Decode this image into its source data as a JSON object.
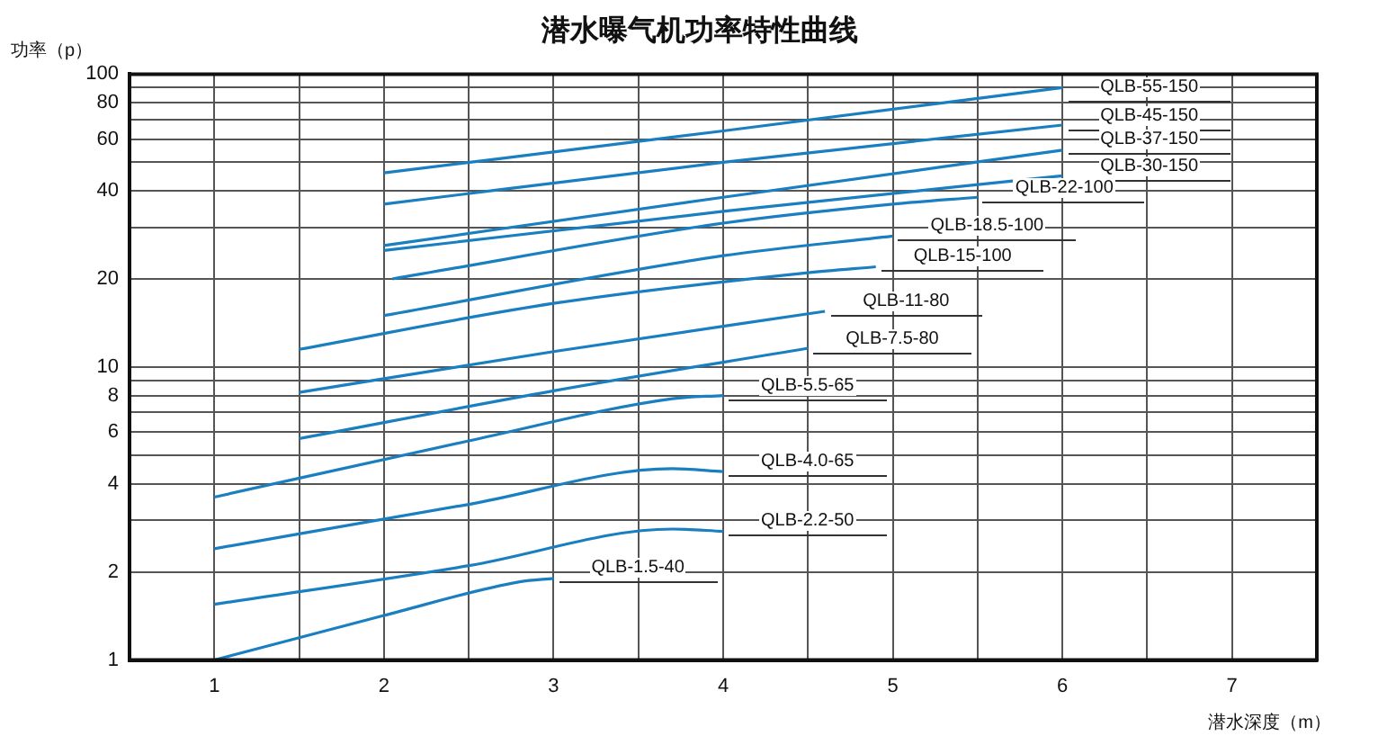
{
  "chart_data": {
    "type": "line",
    "title": "潜水曝气机功率特性曲线",
    "xlabel": "潜水深度（m）",
    "ylabel": "功率（p）",
    "log": "y",
    "grid": true,
    "marker": "none",
    "line_style": "solid",
    "legend": false,
    "xlim": [
      0.5,
      7.5
    ],
    "xticks": [
      {
        "value": 0.5,
        "label": null
      },
      1,
      {
        "value": 1.5,
        "label": null
      },
      2,
      {
        "value": 2.5,
        "label": null
      },
      3,
      {
        "value": 3.5,
        "label": null
      },
      4,
      {
        "value": 4.5,
        "label": null
      },
      5,
      {
        "value": 5.5,
        "label": null
      },
      6,
      {
        "value": 6.5,
        "label": null
      },
      7,
      {
        "value": 7.5,
        "label": null
      }
    ],
    "ylim": [
      1,
      100
    ],
    "yticks": [
      1,
      2,
      {
        "value": 3,
        "label": null
      },
      4,
      {
        "value": 5,
        "label": null
      },
      6,
      {
        "value": 7,
        "label": null
      },
      8,
      {
        "value": 9,
        "label": null
      },
      10,
      20,
      {
        "value": 30,
        "label": null
      },
      40,
      {
        "value": 50,
        "label": null
      },
      60,
      {
        "value": 70,
        "label": null
      },
      80,
      {
        "value": 90,
        "label": null
      },
      100
    ],
    "series": [
      {
        "name": "QLB-55-150",
        "color": "#1a7fc1",
        "x": [
          2,
          4,
          6
        ],
        "values": [
          46,
          64,
          90
        ]
      },
      {
        "name": "QLB-45-150",
        "color": "#1a7fc1",
        "x": [
          2,
          4,
          6
        ],
        "values": [
          36,
          50,
          67
        ]
      },
      {
        "name": "QLB-37-150",
        "color": "#1a7fc1",
        "x": [
          2,
          4,
          6
        ],
        "values": [
          26,
          38,
          55
        ]
      },
      {
        "name": "QLB-30-150",
        "color": "#1a7fc1",
        "x": [
          2,
          4,
          6
        ],
        "values": [
          25,
          34,
          45
        ]
      },
      {
        "name": "QLB-22-100",
        "color": "#1a7fc1",
        "x": [
          2.05,
          4,
          5,
          5.5
        ],
        "values": [
          20,
          31,
          36,
          38
        ]
      },
      {
        "name": "QLB-18.5-100",
        "color": "#1a7fc1",
        "x": [
          2,
          4,
          5
        ],
        "values": [
          15,
          24,
          28
        ]
      },
      {
        "name": "QLB-15-100",
        "color": "#1a7fc1",
        "x": [
          1.5,
          3,
          4.5,
          4.9
        ],
        "values": [
          11.5,
          16.5,
          21,
          22
        ]
      },
      {
        "name": "QLB-11-80",
        "color": "#1a7fc1",
        "x": [
          1.5,
          3,
          4.6
        ],
        "values": [
          8.2,
          11.3,
          15.5
        ]
      },
      {
        "name": "QLB-7.5-80",
        "color": "#1a7fc1",
        "x": [
          1.5,
          3,
          4.5
        ],
        "values": [
          5.7,
          8.3,
          11.6
        ]
      },
      {
        "name": "QLB-5.5-65",
        "color": "#1a7fc1",
        "x": [
          1,
          2.5,
          3.7,
          4
        ],
        "values": [
          3.6,
          5.6,
          7.8,
          8
        ]
      },
      {
        "name": "QLB-4.0-65",
        "color": "#1a7fc1",
        "x": [
          1,
          2.5,
          3.7,
          4
        ],
        "values": [
          2.4,
          3.4,
          4.5,
          4.4
        ]
      },
      {
        "name": "QLB-2.2-50",
        "color": "#1a7fc1",
        "x": [
          1,
          2.5,
          3.7,
          4
        ],
        "values": [
          1.55,
          2.1,
          2.8,
          2.75
        ]
      },
      {
        "name": "QLB-1.5-40",
        "color": "#1a7fc1",
        "x": [
          1,
          2,
          2.8,
          3
        ],
        "values": [
          1,
          1.42,
          1.85,
          1.9
        ]
      }
    ]
  }
}
